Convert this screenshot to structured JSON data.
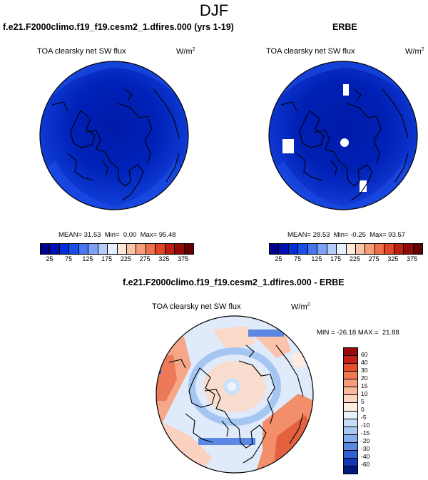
{
  "page": {
    "title": "DJF"
  },
  "chart_data": [
    {
      "type": "heatmap",
      "projection": "north-polar-stereographic",
      "case_title": "f.e21.F2000climo.f19_f19.cesm2_1.dfires.000 (yrs 1-19)",
      "variable": "TOA clearsky net SW flux",
      "units_base": "W/m",
      "units_exp": "2",
      "stats": {
        "mean_label": "MEAN=",
        "mean": "31.53",
        "min_label": "Min=",
        "min": "0.00",
        "max_label": "Max=",
        "max": "95.48"
      },
      "colorbar": {
        "ticks": [
          "25",
          "75",
          "125",
          "175",
          "225",
          "275",
          "325",
          "375"
        ],
        "colors": [
          "#00008c",
          "#0010b4",
          "#0030d8",
          "#1a4ee6",
          "#4876f0",
          "#7ea2f5",
          "#b4cdfa",
          "#e6efff",
          "#ffe8d9",
          "#fcc4a7",
          "#f79c78",
          "#ef704b",
          "#df4527",
          "#bd1e12",
          "#930a04",
          "#650000"
        ]
      }
    },
    {
      "type": "heatmap",
      "projection": "north-polar-stereographic",
      "case_title": "ERBE",
      "variable": "TOA clearsky net SW flux",
      "units_base": "W/m",
      "units_exp": "2",
      "stats": {
        "mean_label": "MEAN=",
        "mean": "28.53",
        "min_label": "Min=",
        "min": "-0.25",
        "max_label": "Max=",
        "max": "93.57"
      },
      "colorbar": {
        "ticks": [
          "25",
          "75",
          "125",
          "175",
          "225",
          "275",
          "325",
          "375"
        ],
        "colors": [
          "#00008c",
          "#0010b4",
          "#0030d8",
          "#1a4ee6",
          "#4876f0",
          "#7ea2f5",
          "#b4cdfa",
          "#e6efff",
          "#ffe8d9",
          "#fcc4a7",
          "#f79c78",
          "#ef704b",
          "#df4527",
          "#bd1e12",
          "#930a04",
          "#650000"
        ]
      }
    },
    {
      "type": "heatmap",
      "projection": "north-polar-stereographic",
      "case_title": "f.e21.F2000climo.f19_f19.cesm2_1.dfires.000 - ERBE",
      "variable": "TOA clearsky net SW flux",
      "units_base": "W/m",
      "units_exp": "2",
      "stats": {
        "min_label": "MIN =",
        "min": "-26.18",
        "max_label": "MAX =",
        "max": "21.88"
      },
      "colorbar": {
        "ticks": [
          "60",
          "40",
          "30",
          "20",
          "15",
          "10",
          "5",
          "0",
          "-5",
          "-10",
          "-15",
          "-20",
          "-30",
          "-40",
          "-60"
        ],
        "colors": [
          "#9b0a0a",
          "#c71f1a",
          "#e4502b",
          "#f27850",
          "#f89a77",
          "#fcb89c",
          "#fdd4c2",
          "#fdecdf",
          "#e8f2fc",
          "#c8def8",
          "#a8c8f2",
          "#85acec",
          "#5a88e2",
          "#3060d4",
          "#1436b4",
          "#001880"
        ]
      }
    }
  ]
}
